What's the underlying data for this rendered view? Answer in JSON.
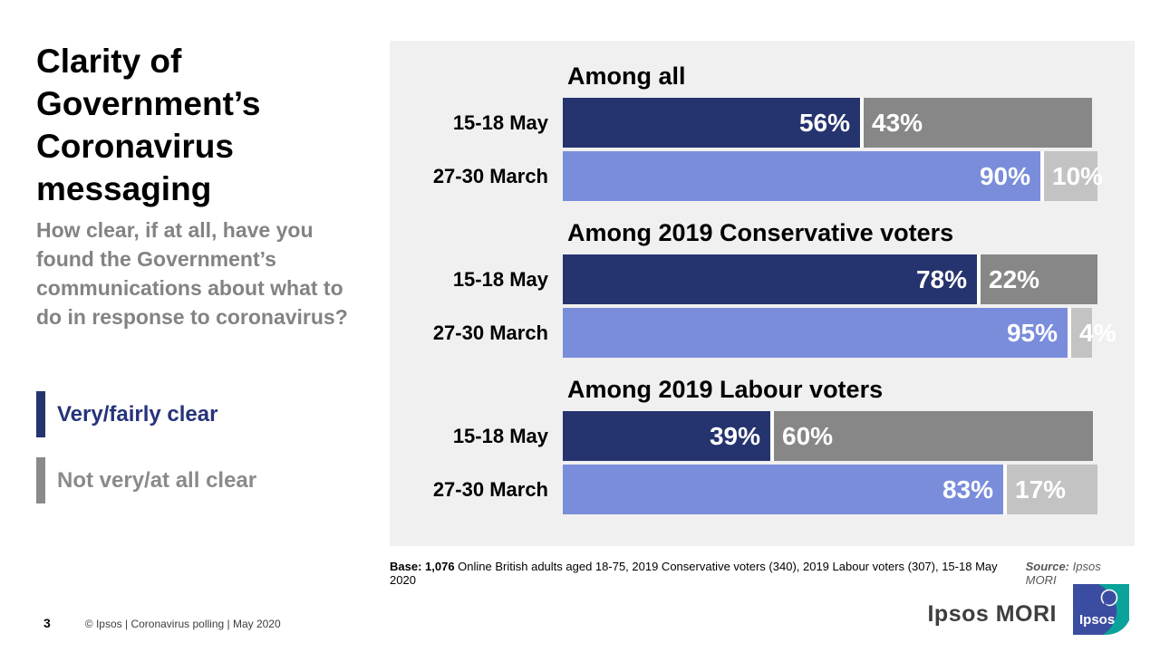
{
  "slide": {
    "title": "Clarity of Government’s Coronavirus messaging",
    "question": "How clear, if at all, have you found the Government’s communications about what to do in response to coronavirus?",
    "page_number": "3",
    "footer_text": "© Ipsos | Coronavirus polling | May 2020",
    "base_bold": "Base: 1,076",
    "base_rest": " Online British adults aged 18-75, 2019 Conservative voters (340), 2019 Labour voters (307), 15-18 May 2020",
    "source_label": "Source:",
    "source_value": " Ipsos MORI",
    "brand_wordmark": "Ipsos MORI",
    "logo_text": "Ipsos"
  },
  "legend": [
    {
      "label": "Very/fairly clear",
      "color": "#25336F",
      "text_color": "#26337A"
    },
    {
      "label": "Not very/at all clear",
      "color": "#8A8A8A",
      "text_color": "#8A8A8A"
    }
  ],
  "colors": {
    "panel_background": "#F0F0F0",
    "navy": "#25336F",
    "periwinkle": "#7A8DDB",
    "mid_gray": "#878787",
    "light_gray": "#C3C3C3",
    "question_gray": "#838383"
  },
  "chart_data": {
    "type": "bar",
    "orientation": "horizontal",
    "stacked": true,
    "unit": "%",
    "xlim": [
      0,
      100
    ],
    "grid": false,
    "legend_entries": [
      "Very/fairly clear",
      "Not very/at all clear"
    ],
    "legend_position": "left-outside",
    "groups": [
      {
        "title": "Among all",
        "rows": [
          {
            "label": "15-18 May",
            "values": [
              56,
              43
            ],
            "colors": [
              "#25336F",
              "#878787"
            ]
          },
          {
            "label": "27-30 March",
            "values": [
              90,
              10
            ],
            "colors": [
              "#7A8DDB",
              "#C3C3C3"
            ]
          }
        ]
      },
      {
        "title": "Among 2019 Conservative voters",
        "rows": [
          {
            "label": "15-18 May",
            "values": [
              78,
              22
            ],
            "colors": [
              "#25336F",
              "#878787"
            ]
          },
          {
            "label": "27-30 March",
            "values": [
              95,
              4
            ],
            "colors": [
              "#7A8DDB",
              "#C3C3C3"
            ]
          }
        ]
      },
      {
        "title": "Among 2019 Labour voters",
        "rows": [
          {
            "label": "15-18 May",
            "values": [
              39,
              60
            ],
            "colors": [
              "#25336F",
              "#878787"
            ]
          },
          {
            "label": "27-30 March",
            "values": [
              83,
              17
            ],
            "colors": [
              "#7A8DDB",
              "#C3C3C3"
            ]
          }
        ]
      }
    ]
  }
}
